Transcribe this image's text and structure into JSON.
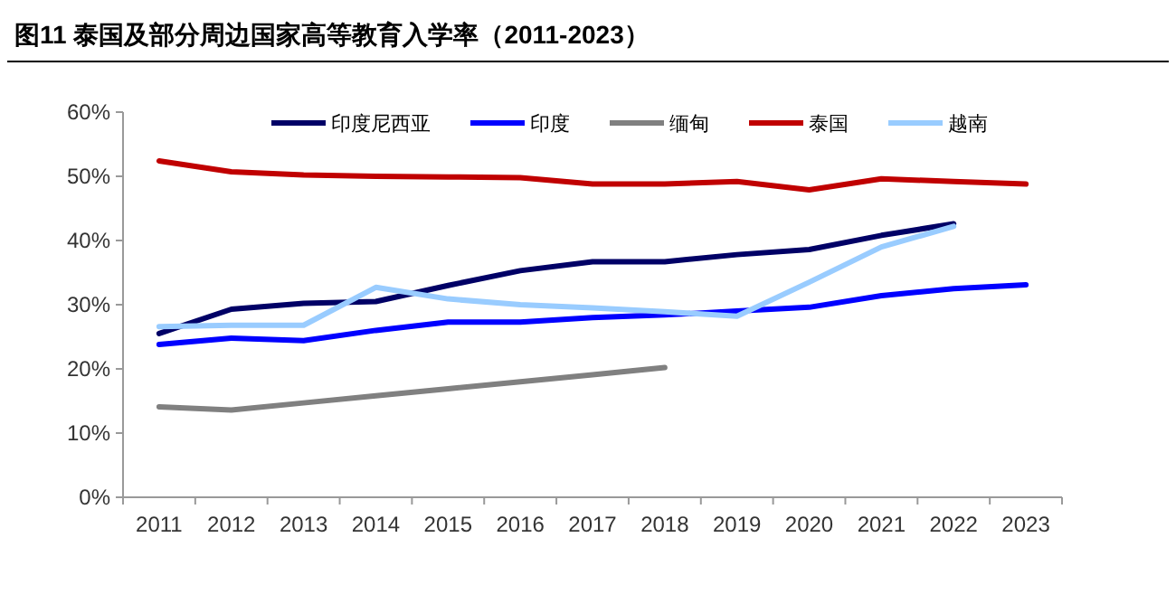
{
  "chart_data": {
    "type": "line",
    "title": "图11 泰国及部分周边国家高等教育入学率（2011-2023）",
    "categories": [
      "2011",
      "2012",
      "2013",
      "2014",
      "2015",
      "2016",
      "2017",
      "2018",
      "2019",
      "2020",
      "2021",
      "2022",
      "2023"
    ],
    "series": [
      {
        "name": "印度尼西亚",
        "color": "#000066",
        "values": [
          25.5,
          29.3,
          30.2,
          30.5,
          33.0,
          35.3,
          36.7,
          36.7,
          37.8,
          38.6,
          40.8,
          42.6,
          null
        ]
      },
      {
        "name": "印度",
        "color": "#0000ff",
        "values": [
          23.8,
          24.8,
          24.4,
          26.0,
          27.3,
          27.3,
          28.0,
          28.4,
          29.0,
          29.6,
          31.4,
          32.5,
          33.1
        ]
      },
      {
        "name": "缅甸",
        "color": "#808080",
        "values": [
          14.1,
          13.6,
          14.7,
          15.8,
          16.9,
          18.0,
          19.1,
          20.2,
          null,
          null,
          null,
          null,
          null
        ]
      },
      {
        "name": "泰国",
        "color": "#c00000",
        "values": [
          52.4,
          50.7,
          50.2,
          50.0,
          49.9,
          49.8,
          48.8,
          48.8,
          49.2,
          47.9,
          49.6,
          49.2,
          48.8
        ]
      },
      {
        "name": "越南",
        "color": "#99ccff",
        "values": [
          26.6,
          26.8,
          26.8,
          32.7,
          30.9,
          30.0,
          29.5,
          28.9,
          28.2,
          33.5,
          39.0,
          42.2,
          null
        ]
      }
    ],
    "ylim": [
      0,
      60
    ],
    "yticks": [
      {
        "value": 0,
        "label": "0%"
      },
      {
        "value": 10,
        "label": "10%"
      },
      {
        "value": 20,
        "label": "20%"
      },
      {
        "value": 30,
        "label": "30%"
      },
      {
        "value": 40,
        "label": "40%"
      },
      {
        "value": 50,
        "label": "50%"
      },
      {
        "value": 60,
        "label": "60%"
      }
    ],
    "grid": false,
    "legend": "top",
    "marker": "none",
    "line_style": "solid"
  }
}
